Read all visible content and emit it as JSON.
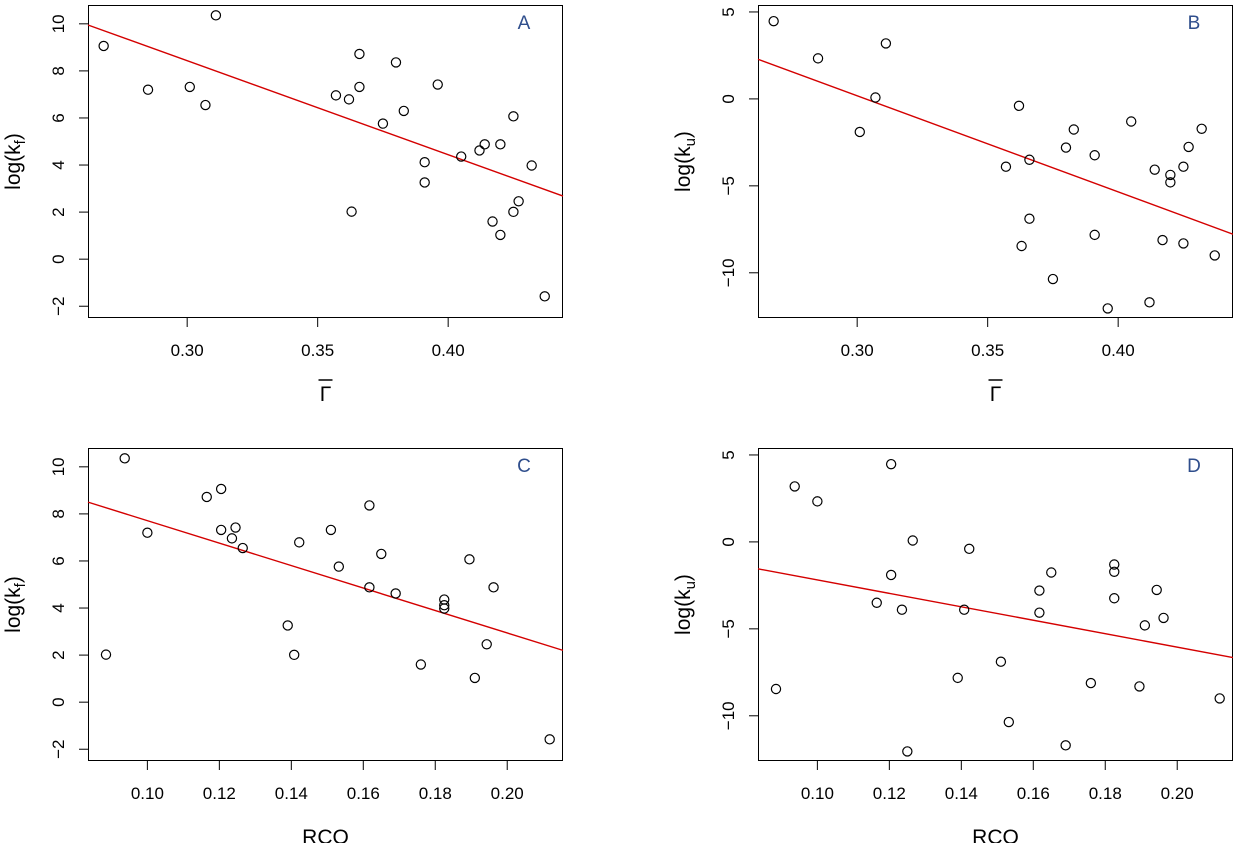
{
  "colors": {
    "point": "#000000",
    "fit_line": "#d40000",
    "panel_letter": "#2f4e8c",
    "axis": "#000000"
  },
  "chart_data": [
    {
      "type": "scatter",
      "panel_label": "A",
      "xlabel": "Γ",
      "xlabel_overline": true,
      "ylabel_base": "log(k",
      "ylabel_sub": "f",
      "ylabel_tail": ")",
      "xlim": [
        0.262,
        0.444
      ],
      "ylim": [
        -2.5,
        10.8
      ],
      "xticks": [
        0.3,
        0.35,
        0.4
      ],
      "xtick_labels": [
        "0.30",
        "0.35",
        "0.40"
      ],
      "yticks": [
        -2,
        0,
        2,
        4,
        6,
        8,
        10
      ],
      "ytick_labels": [
        "−2",
        "0",
        "2",
        "4",
        "6",
        "8",
        "10"
      ],
      "points": [
        {
          "x": 0.268,
          "y": 9.06
        },
        {
          "x": 0.285,
          "y": 7.2
        },
        {
          "x": 0.301,
          "y": 7.32
        },
        {
          "x": 0.307,
          "y": 6.55
        },
        {
          "x": 0.311,
          "y": 10.36
        },
        {
          "x": 0.357,
          "y": 6.96
        },
        {
          "x": 0.362,
          "y": 6.79
        },
        {
          "x": 0.363,
          "y": 2.02
        },
        {
          "x": 0.366,
          "y": 8.72
        },
        {
          "x": 0.366,
          "y": 7.32
        },
        {
          "x": 0.375,
          "y": 5.76
        },
        {
          "x": 0.38,
          "y": 8.36
        },
        {
          "x": 0.383,
          "y": 6.3
        },
        {
          "x": 0.391,
          "y": 4.12
        },
        {
          "x": 0.391,
          "y": 3.26
        },
        {
          "x": 0.396,
          "y": 7.42
        },
        {
          "x": 0.405,
          "y": 4.36
        },
        {
          "x": 0.412,
          "y": 4.62
        },
        {
          "x": 0.414,
          "y": 4.88
        },
        {
          "x": 0.417,
          "y": 1.6
        },
        {
          "x": 0.42,
          "y": 4.88
        },
        {
          "x": 0.42,
          "y": 1.03
        },
        {
          "x": 0.425,
          "y": 2.01
        },
        {
          "x": 0.425,
          "y": 6.07
        },
        {
          "x": 0.427,
          "y": 2.46
        },
        {
          "x": 0.432,
          "y": 3.98
        },
        {
          "x": 0.437,
          "y": -1.58
        }
      ],
      "fit_line": [
        {
          "x": 0.262,
          "y": 9.95
        },
        {
          "x": 0.444,
          "y": 2.68
        }
      ]
    },
    {
      "type": "scatter",
      "panel_label": "B",
      "xlabel": "Γ",
      "xlabel_overline": true,
      "ylabel_base": "log(k",
      "ylabel_sub": "u",
      "ylabel_tail": ")",
      "xlim": [
        0.262,
        0.444
      ],
      "ylim": [
        -12.6,
        5.4
      ],
      "xticks": [
        0.3,
        0.35,
        0.4
      ],
      "xtick_labels": [
        "0.30",
        "0.35",
        "0.40"
      ],
      "yticks": [
        -10,
        -5,
        0,
        5
      ],
      "ytick_labels": [
        "−10",
        "−5",
        "0",
        "5"
      ],
      "points": [
        {
          "x": 0.268,
          "y": 4.47
        },
        {
          "x": 0.285,
          "y": 2.33
        },
        {
          "x": 0.301,
          "y": -1.9
        },
        {
          "x": 0.307,
          "y": 0.08
        },
        {
          "x": 0.311,
          "y": 3.19
        },
        {
          "x": 0.357,
          "y": -3.9
        },
        {
          "x": 0.362,
          "y": -0.4
        },
        {
          "x": 0.363,
          "y": -8.46
        },
        {
          "x": 0.366,
          "y": -3.5
        },
        {
          "x": 0.366,
          "y": -6.89
        },
        {
          "x": 0.375,
          "y": -10.36
        },
        {
          "x": 0.38,
          "y": -2.8
        },
        {
          "x": 0.383,
          "y": -1.76
        },
        {
          "x": 0.391,
          "y": -3.24
        },
        {
          "x": 0.391,
          "y": -7.82
        },
        {
          "x": 0.396,
          "y": -12.05
        },
        {
          "x": 0.405,
          "y": -1.3
        },
        {
          "x": 0.412,
          "y": -11.7
        },
        {
          "x": 0.414,
          "y": -4.07
        },
        {
          "x": 0.417,
          "y": -8.12
        },
        {
          "x": 0.42,
          "y": -4.37
        },
        {
          "x": 0.42,
          "y": -4.8
        },
        {
          "x": 0.425,
          "y": -3.9
        },
        {
          "x": 0.425,
          "y": -8.31
        },
        {
          "x": 0.427,
          "y": -2.76
        },
        {
          "x": 0.432,
          "y": -1.72
        },
        {
          "x": 0.437,
          "y": -9.0
        }
      ],
      "fit_line": [
        {
          "x": 0.262,
          "y": 2.28
        },
        {
          "x": 0.444,
          "y": -7.78
        }
      ]
    },
    {
      "type": "scatter",
      "panel_label": "C",
      "xlabel": "RCO",
      "xlabel_overline": false,
      "ylabel_base": "log(k",
      "ylabel_sub": "f",
      "ylabel_tail": ")",
      "xlim": [
        0.0835,
        0.2155
      ],
      "ylim": [
        -2.5,
        10.8
      ],
      "xticks": [
        0.1,
        0.12,
        0.14,
        0.16,
        0.18,
        0.2
      ],
      "xtick_labels": [
        "0.10",
        "0.12",
        "0.14",
        "0.16",
        "0.18",
        "0.20"
      ],
      "yticks": [
        -2,
        0,
        2,
        4,
        6,
        8,
        10
      ],
      "ytick_labels": [
        "−2",
        "0",
        "2",
        "4",
        "6",
        "8",
        "10"
      ],
      "points": [
        {
          "x": 0.0885,
          "y": 2.02
        },
        {
          "x": 0.0937,
          "y": 10.36
        },
        {
          "x": 0.1,
          "y": 7.2
        },
        {
          "x": 0.1165,
          "y": 8.72
        },
        {
          "x": 0.1205,
          "y": 9.06
        },
        {
          "x": 0.1205,
          "y": 7.32
        },
        {
          "x": 0.1235,
          "y": 6.96
        },
        {
          "x": 0.1245,
          "y": 7.42
        },
        {
          "x": 0.1265,
          "y": 6.55
        },
        {
          "x": 0.139,
          "y": 3.26
        },
        {
          "x": 0.1408,
          "y": 2.01
        },
        {
          "x": 0.1422,
          "y": 6.79
        },
        {
          "x": 0.151,
          "y": 7.32
        },
        {
          "x": 0.1532,
          "y": 5.76
        },
        {
          "x": 0.1617,
          "y": 8.36
        },
        {
          "x": 0.1617,
          "y": 4.88
        },
        {
          "x": 0.165,
          "y": 6.3
        },
        {
          "x": 0.169,
          "y": 4.62
        },
        {
          "x": 0.176,
          "y": 1.6
        },
        {
          "x": 0.1825,
          "y": 4.36
        },
        {
          "x": 0.1825,
          "y": 4.12
        },
        {
          "x": 0.1825,
          "y": 3.98
        },
        {
          "x": 0.1895,
          "y": 6.07
        },
        {
          "x": 0.191,
          "y": 1.03
        },
        {
          "x": 0.1943,
          "y": 2.46
        },
        {
          "x": 0.1962,
          "y": 4.88
        },
        {
          "x": 0.2118,
          "y": -1.58
        }
      ],
      "fit_line": [
        {
          "x": 0.0835,
          "y": 8.5
        },
        {
          "x": 0.2155,
          "y": 2.2
        }
      ]
    },
    {
      "type": "scatter",
      "panel_label": "D",
      "xlabel": "RCO",
      "xlabel_overline": false,
      "ylabel_base": "log(k",
      "ylabel_sub": "u",
      "ylabel_tail": ")",
      "xlim": [
        0.0835,
        0.2155
      ],
      "ylim": [
        -12.6,
        5.4
      ],
      "xticks": [
        0.1,
        0.12,
        0.14,
        0.16,
        0.18,
        0.2
      ],
      "xtick_labels": [
        "0.10",
        "0.12",
        "0.14",
        "0.16",
        "0.18",
        "0.20"
      ],
      "yticks": [
        -10,
        -5,
        0,
        5
      ],
      "ytick_labels": [
        "−10",
        "−5",
        "0",
        "5"
      ],
      "points": [
        {
          "x": 0.0885,
          "y": -8.46
        },
        {
          "x": 0.0937,
          "y": 3.19
        },
        {
          "x": 0.1,
          "y": 2.33
        },
        {
          "x": 0.1165,
          "y": -3.5
        },
        {
          "x": 0.1205,
          "y": 4.47
        },
        {
          "x": 0.1205,
          "y": -1.9
        },
        {
          "x": 0.1235,
          "y": -3.9
        },
        {
          "x": 0.125,
          "y": -12.05
        },
        {
          "x": 0.1265,
          "y": 0.08
        },
        {
          "x": 0.139,
          "y": -7.82
        },
        {
          "x": 0.1408,
          "y": -3.9
        },
        {
          "x": 0.1422,
          "y": -0.4
        },
        {
          "x": 0.151,
          "y": -6.89
        },
        {
          "x": 0.1532,
          "y": -10.36
        },
        {
          "x": 0.1617,
          "y": -2.8
        },
        {
          "x": 0.1617,
          "y": -4.07
        },
        {
          "x": 0.165,
          "y": -1.76
        },
        {
          "x": 0.169,
          "y": -11.7
        },
        {
          "x": 0.176,
          "y": -8.12
        },
        {
          "x": 0.1825,
          "y": -1.3
        },
        {
          "x": 0.1825,
          "y": -1.72
        },
        {
          "x": 0.1825,
          "y": -3.24
        },
        {
          "x": 0.1895,
          "y": -8.31
        },
        {
          "x": 0.191,
          "y": -4.8
        },
        {
          "x": 0.1943,
          "y": -2.76
        },
        {
          "x": 0.1962,
          "y": -4.37
        },
        {
          "x": 0.2118,
          "y": -9.0
        }
      ],
      "fit_line": [
        {
          "x": 0.0835,
          "y": -1.55
        },
        {
          "x": 0.2155,
          "y": -6.65
        }
      ]
    }
  ]
}
